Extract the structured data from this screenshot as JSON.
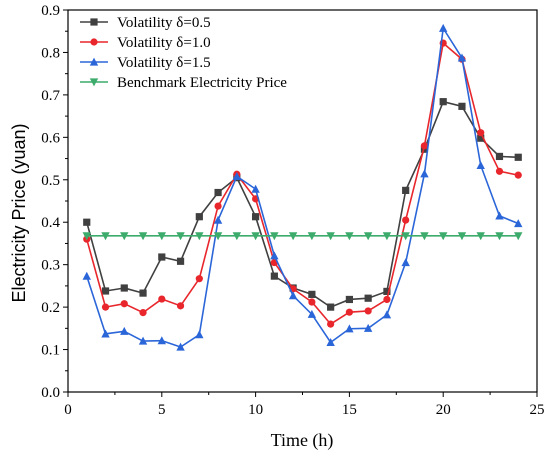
{
  "chart_data": {
    "type": "line",
    "title": "",
    "xlabel": "Time (h)",
    "ylabel": "Electricity Price (yuan)",
    "xlim": [
      0,
      25
    ],
    "ylim": [
      0.0,
      0.9
    ],
    "x_ticks": [
      0,
      5,
      10,
      15,
      20,
      25
    ],
    "y_ticks": [
      0.0,
      0.1,
      0.2,
      0.3,
      0.4,
      0.5,
      0.6,
      0.7,
      0.8,
      0.9
    ],
    "x_tick_labels": [
      "0",
      "5",
      "10",
      "15",
      "20",
      "25"
    ],
    "y_tick_labels": [
      "0.0",
      "0.1",
      "0.2",
      "0.3",
      "0.4",
      "0.5",
      "0.6",
      "0.7",
      "0.8",
      "0.9"
    ],
    "grid": false,
    "legend_position": "top-left",
    "x": [
      1,
      2,
      3,
      4,
      5,
      6,
      7,
      8,
      9,
      10,
      11,
      12,
      13,
      14,
      15,
      16,
      17,
      18,
      19,
      20,
      21,
      22,
      23,
      24
    ],
    "series": [
      {
        "name": "Volatility δ=0.5",
        "color": "#404040",
        "marker": "square",
        "values": [
          0.4,
          0.238,
          0.245,
          0.233,
          0.318,
          0.308,
          0.413,
          0.47,
          0.505,
          0.413,
          0.273,
          0.245,
          0.23,
          0.2,
          0.218,
          0.221,
          0.237,
          0.475,
          0.572,
          0.684,
          0.673,
          0.598,
          0.555,
          0.553
        ]
      },
      {
        "name": "Volatility δ=1.0",
        "color": "#e8262b",
        "marker": "circle",
        "values": [
          0.36,
          0.2,
          0.208,
          0.187,
          0.219,
          0.203,
          0.267,
          0.438,
          0.513,
          0.455,
          0.305,
          0.243,
          0.212,
          0.16,
          0.188,
          0.191,
          0.218,
          0.405,
          0.58,
          0.822,
          0.784,
          0.611,
          0.52,
          0.511
        ]
      },
      {
        "name": "Volatility δ=1.5",
        "color": "#2b66d9",
        "marker": "triangle-up",
        "values": [
          0.273,
          0.137,
          0.143,
          0.12,
          0.121,
          0.106,
          0.135,
          0.405,
          0.508,
          0.478,
          0.321,
          0.227,
          0.183,
          0.117,
          0.149,
          0.15,
          0.182,
          0.305,
          0.514,
          0.857,
          0.787,
          0.534,
          0.415,
          0.397
        ]
      },
      {
        "name": "Benchmark Electricity Price",
        "color": "#3cab6b",
        "marker": "triangle-down",
        "values": [
          0.368,
          0.368,
          0.368,
          0.368,
          0.368,
          0.368,
          0.368,
          0.368,
          0.368,
          0.368,
          0.368,
          0.368,
          0.368,
          0.368,
          0.368,
          0.368,
          0.368,
          0.368,
          0.368,
          0.368,
          0.368,
          0.368,
          0.368,
          0.368
        ]
      }
    ]
  }
}
